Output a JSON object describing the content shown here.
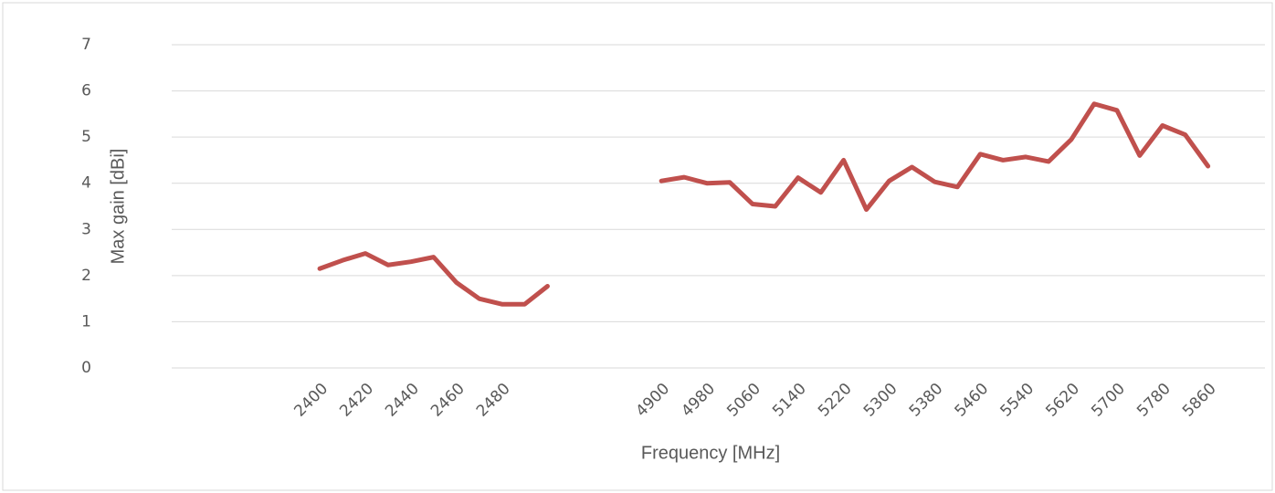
{
  "chart_data": {
    "type": "line",
    "x_label": "Frequency [MHz]",
    "y_label": "Max gain [dBi]",
    "categories": [
      null,
      null,
      null,
      null,
      null,
      null,
      "2400",
      null,
      "2420",
      null,
      "2440",
      null,
      "2460",
      null,
      "2480",
      null,
      null,
      null,
      null,
      null,
      null,
      "4900",
      null,
      "4980",
      null,
      "5060",
      null,
      "5140",
      null,
      "5220",
      null,
      "5300",
      null,
      "5380",
      null,
      "5460",
      null,
      "5540",
      null,
      "5620",
      null,
      "5700",
      null,
      "5780",
      null,
      "5860",
      null,
      null
    ],
    "series": [
      {
        "name": "Max gain",
        "color": "#c0504d",
        "values": [
          null,
          null,
          null,
          null,
          null,
          null,
          2.15,
          2.33,
          2.48,
          2.23,
          2.3,
          2.4,
          1.85,
          1.5,
          1.38,
          1.38,
          1.77,
          null,
          null,
          null,
          null,
          4.05,
          4.13,
          4.0,
          4.02,
          3.55,
          3.5,
          4.12,
          3.8,
          4.5,
          3.43,
          4.05,
          4.35,
          4.03,
          3.92,
          4.63,
          4.5,
          4.57,
          4.47,
          4.95,
          5.72,
          5.58,
          4.6,
          5.25,
          5.05,
          4.37,
          null,
          null
        ]
      }
    ],
    "ylim": [
      0,
      7
    ],
    "yticks": [
      0,
      1,
      2,
      3,
      4,
      5,
      6,
      7
    ],
    "grid": true
  }
}
